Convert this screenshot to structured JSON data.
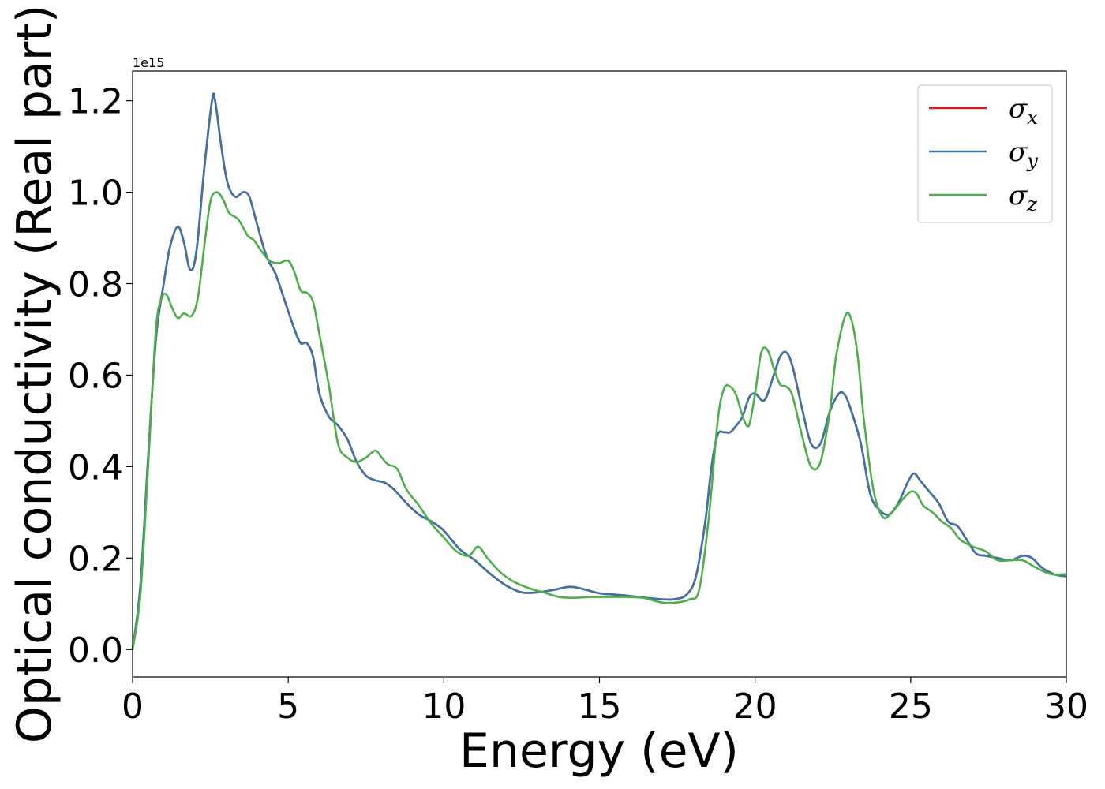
{
  "chart_data": {
    "type": "line",
    "title": "",
    "xlabel": "Energy (eV)",
    "ylabel": "Optical conductivity (Real part)",
    "y_offset_label": "1e15",
    "y_scale": 1000000000000000.0,
    "xlim": [
      0,
      30
    ],
    "ylim": [
      -0.06,
      1.265
    ],
    "x_ticks": [
      0,
      5,
      10,
      15,
      20,
      25,
      30
    ],
    "x_tick_labels": [
      "0",
      "5",
      "10",
      "15",
      "20",
      "25",
      "30"
    ],
    "y_ticks": [
      0.0,
      0.2,
      0.4,
      0.6,
      0.8,
      1.0,
      1.2
    ],
    "y_tick_labels": [
      "0.0",
      "0.2",
      "0.4",
      "0.6",
      "0.8",
      "1.0",
      "1.2"
    ],
    "grid": false,
    "legend_position": "top-right",
    "series": [
      {
        "name": "σ",
        "subscript": "x",
        "color": "#e41a1c",
        "x": [
          0,
          0.25,
          0.5,
          0.75,
          1.0,
          1.2,
          1.45,
          1.65,
          1.85,
          2.05,
          2.3,
          2.55,
          2.65,
          2.85,
          3.05,
          3.3,
          3.55,
          3.75,
          4.0,
          4.3,
          4.6,
          4.9,
          5.2,
          5.4,
          5.6,
          5.8,
          6.0,
          6.3,
          6.6,
          6.9,
          7.2,
          7.5,
          7.8,
          8.1,
          8.4,
          8.8,
          9.2,
          9.6,
          10.0,
          10.5,
          11.0,
          11.5,
          12.0,
          12.5,
          13.0,
          13.5,
          14.0,
          14.3,
          14.6,
          15.0,
          15.5,
          16.0,
          16.5,
          17.0,
          17.4,
          17.8,
          18.1,
          18.4,
          18.6,
          18.8,
          19.0,
          19.2,
          19.4,
          19.6,
          19.8,
          20.0,
          20.3,
          20.6,
          20.8,
          21.0,
          21.2,
          21.5,
          21.8,
          22.1,
          22.4,
          22.7,
          22.9,
          23.1,
          23.4,
          23.7,
          24.0,
          24.3,
          24.6,
          24.9,
          25.1,
          25.3,
          25.6,
          25.9,
          26.2,
          26.5,
          26.8,
          27.1,
          27.4,
          27.8,
          28.2,
          28.6,
          28.9,
          29.2,
          29.6,
          30.0
        ],
        "y": [
          0.0,
          0.14,
          0.42,
          0.68,
          0.8,
          0.88,
          0.925,
          0.89,
          0.83,
          0.87,
          1.05,
          1.2,
          1.2,
          1.1,
          1.02,
          0.99,
          1.0,
          0.99,
          0.93,
          0.86,
          0.82,
          0.76,
          0.7,
          0.67,
          0.67,
          0.64,
          0.56,
          0.51,
          0.49,
          0.46,
          0.41,
          0.38,
          0.37,
          0.365,
          0.35,
          0.32,
          0.295,
          0.28,
          0.26,
          0.22,
          0.195,
          0.165,
          0.14,
          0.125,
          0.125,
          0.13,
          0.137,
          0.135,
          0.13,
          0.123,
          0.12,
          0.117,
          0.113,
          0.11,
          0.11,
          0.12,
          0.16,
          0.28,
          0.4,
          0.47,
          0.475,
          0.475,
          0.49,
          0.51,
          0.55,
          0.56,
          0.545,
          0.6,
          0.64,
          0.65,
          0.62,
          0.53,
          0.45,
          0.45,
          0.52,
          0.56,
          0.555,
          0.52,
          0.45,
          0.34,
          0.305,
          0.295,
          0.32,
          0.365,
          0.385,
          0.37,
          0.345,
          0.32,
          0.28,
          0.27,
          0.24,
          0.21,
          0.205,
          0.2,
          0.195,
          0.205,
          0.2,
          0.18,
          0.165,
          0.16
        ]
      },
      {
        "name": "σ",
        "subscript": "y",
        "color": "#3a74a8",
        "x": [
          0,
          0.25,
          0.5,
          0.75,
          1.0,
          1.2,
          1.45,
          1.65,
          1.85,
          2.05,
          2.3,
          2.55,
          2.65,
          2.85,
          3.05,
          3.3,
          3.55,
          3.75,
          4.0,
          4.3,
          4.6,
          4.9,
          5.2,
          5.4,
          5.6,
          5.8,
          6.0,
          6.3,
          6.6,
          6.9,
          7.2,
          7.5,
          7.8,
          8.1,
          8.4,
          8.8,
          9.2,
          9.6,
          10.0,
          10.5,
          11.0,
          11.5,
          12.0,
          12.5,
          13.0,
          13.5,
          14.0,
          14.3,
          14.6,
          15.0,
          15.5,
          16.0,
          16.5,
          17.0,
          17.4,
          17.8,
          18.1,
          18.4,
          18.6,
          18.8,
          19.0,
          19.2,
          19.4,
          19.6,
          19.8,
          20.0,
          20.3,
          20.6,
          20.8,
          21.0,
          21.2,
          21.5,
          21.8,
          22.1,
          22.4,
          22.7,
          22.9,
          23.1,
          23.4,
          23.7,
          24.0,
          24.3,
          24.6,
          24.9,
          25.1,
          25.3,
          25.6,
          25.9,
          26.2,
          26.5,
          26.8,
          27.1,
          27.4,
          27.8,
          28.2,
          28.6,
          28.9,
          29.2,
          29.6,
          30.0
        ],
        "y": [
          0.0,
          0.14,
          0.42,
          0.68,
          0.8,
          0.88,
          0.925,
          0.89,
          0.83,
          0.87,
          1.05,
          1.2,
          1.2,
          1.1,
          1.02,
          0.99,
          1.0,
          0.99,
          0.93,
          0.86,
          0.82,
          0.76,
          0.7,
          0.67,
          0.67,
          0.64,
          0.56,
          0.51,
          0.49,
          0.46,
          0.41,
          0.38,
          0.37,
          0.365,
          0.35,
          0.32,
          0.295,
          0.28,
          0.26,
          0.22,
          0.195,
          0.165,
          0.14,
          0.125,
          0.125,
          0.13,
          0.137,
          0.135,
          0.13,
          0.123,
          0.12,
          0.117,
          0.113,
          0.11,
          0.11,
          0.12,
          0.16,
          0.28,
          0.4,
          0.47,
          0.475,
          0.475,
          0.49,
          0.51,
          0.55,
          0.56,
          0.545,
          0.6,
          0.64,
          0.65,
          0.62,
          0.53,
          0.45,
          0.45,
          0.52,
          0.56,
          0.555,
          0.52,
          0.45,
          0.34,
          0.305,
          0.295,
          0.32,
          0.365,
          0.385,
          0.37,
          0.345,
          0.32,
          0.28,
          0.27,
          0.24,
          0.21,
          0.205,
          0.2,
          0.195,
          0.205,
          0.2,
          0.18,
          0.165,
          0.16
        ]
      },
      {
        "name": "σ",
        "subscript": "z",
        "color": "#4daf4a",
        "x": [
          0,
          0.25,
          0.5,
          0.75,
          0.95,
          1.1,
          1.25,
          1.45,
          1.65,
          1.9,
          2.1,
          2.3,
          2.5,
          2.7,
          2.9,
          3.1,
          3.4,
          3.7,
          3.9,
          4.1,
          4.4,
          4.7,
          5.0,
          5.2,
          5.4,
          5.6,
          5.8,
          6.0,
          6.3,
          6.6,
          6.9,
          7.2,
          7.5,
          7.8,
          8.0,
          8.2,
          8.5,
          8.8,
          9.2,
          9.6,
          10.0,
          10.4,
          10.8,
          11.1,
          11.4,
          11.8,
          12.2,
          12.7,
          13.2,
          13.7,
          14.2,
          14.7,
          15.2,
          15.8,
          16.4,
          17.0,
          17.5,
          17.9,
          18.2,
          18.5,
          18.8,
          19.0,
          19.2,
          19.4,
          19.6,
          19.8,
          20.0,
          20.2,
          20.4,
          20.6,
          20.8,
          21.0,
          21.2,
          21.5,
          21.8,
          22.1,
          22.4,
          22.6,
          22.9,
          23.1,
          23.3,
          23.5,
          23.8,
          24.1,
          24.4,
          24.7,
          25.0,
          25.2,
          25.4,
          25.7,
          26.0,
          26.3,
          26.6,
          27.0,
          27.4,
          27.8,
          28.2,
          28.6,
          29.0,
          29.5,
          30.0
        ],
        "y": [
          0.0,
          0.12,
          0.4,
          0.7,
          0.77,
          0.775,
          0.75,
          0.725,
          0.735,
          0.73,
          0.77,
          0.88,
          0.98,
          1.0,
          0.985,
          0.955,
          0.94,
          0.905,
          0.895,
          0.875,
          0.85,
          0.845,
          0.85,
          0.825,
          0.785,
          0.78,
          0.76,
          0.69,
          0.58,
          0.45,
          0.42,
          0.41,
          0.42,
          0.435,
          0.42,
          0.405,
          0.395,
          0.35,
          0.315,
          0.275,
          0.245,
          0.215,
          0.205,
          0.225,
          0.2,
          0.17,
          0.15,
          0.135,
          0.125,
          0.115,
          0.113,
          0.115,
          0.115,
          0.115,
          0.113,
          0.103,
          0.103,
          0.11,
          0.13,
          0.28,
          0.5,
          0.57,
          0.575,
          0.555,
          0.51,
          0.49,
          0.56,
          0.65,
          0.655,
          0.615,
          0.58,
          0.575,
          0.555,
          0.47,
          0.4,
          0.41,
          0.52,
          0.64,
          0.73,
          0.72,
          0.64,
          0.5,
          0.35,
          0.29,
          0.3,
          0.325,
          0.345,
          0.34,
          0.315,
          0.3,
          0.28,
          0.265,
          0.24,
          0.225,
          0.215,
          0.195,
          0.195,
          0.195,
          0.18,
          0.165,
          0.165
        ]
      }
    ]
  }
}
